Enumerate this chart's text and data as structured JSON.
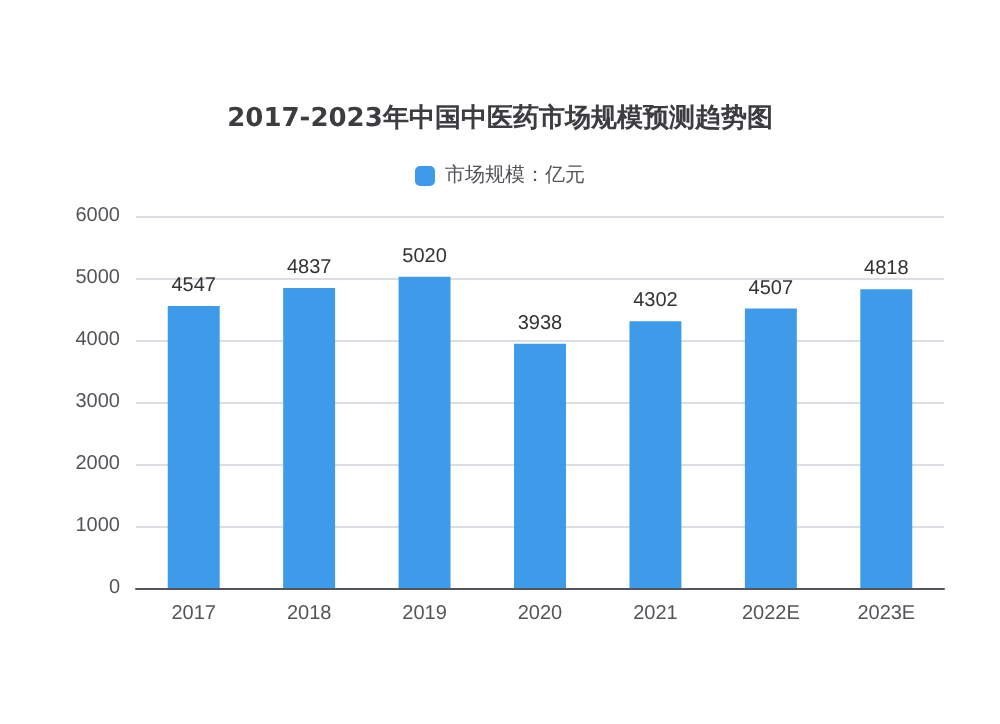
{
  "chart_data": {
    "type": "bar",
    "title": "2017-2023年中国中医药市场规模预测趋势图",
    "categories": [
      "2017",
      "2018",
      "2019",
      "2020",
      "2021",
      "2022E",
      "2023E"
    ],
    "series": [
      {
        "name": "市场规模：亿元",
        "color": "#3d9be9",
        "values": [
          4547,
          4837,
          5020,
          3938,
          4302,
          4507,
          4818
        ]
      }
    ],
    "ylim": [
      0,
      6000
    ],
    "yticks": [
      0,
      1000,
      2000,
      3000,
      4000,
      5000,
      6000
    ],
    "grid": "y",
    "legend": "top",
    "data_labels": true
  }
}
